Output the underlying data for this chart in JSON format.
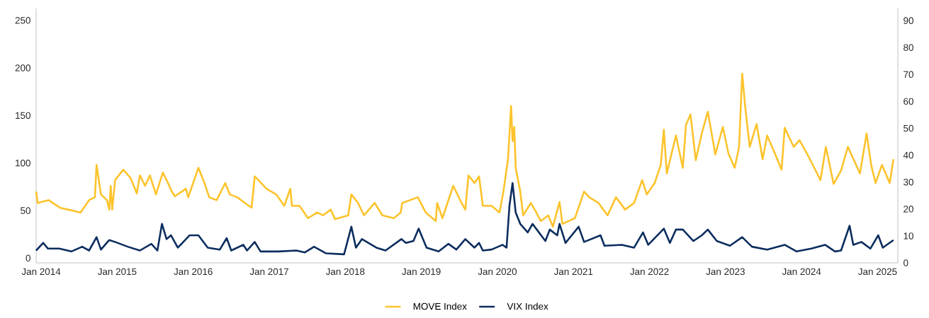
{
  "chart_data": {
    "type": "line",
    "xlim": [
      "2013-12-08",
      "2025-04-08"
    ],
    "xticks": [
      {
        "value": "2014-01-01",
        "label": "Jan 2014"
      },
      {
        "value": "2015-01-01",
        "label": "Jan 2015"
      },
      {
        "value": "2016-01-01",
        "label": "Jan 2016"
      },
      {
        "value": "2017-01-01",
        "label": "Jan 2017"
      },
      {
        "value": "2018-01-01",
        "label": "Jan 2018"
      },
      {
        "value": "2019-01-01",
        "label": "Jan 2019"
      },
      {
        "value": "2020-01-01",
        "label": "Jan 2020"
      },
      {
        "value": "2021-01-01",
        "label": "Jan 2021"
      },
      {
        "value": "2022-01-01",
        "label": "Jan 2022"
      },
      {
        "value": "2023-01-01",
        "label": "Jan 2023"
      },
      {
        "value": "2024-01-01",
        "label": "Jan 2024"
      },
      {
        "value": "2025-01-01",
        "label": "Jan 2025"
      }
    ],
    "ylim": [
      -5,
      262.5
    ],
    "yticks": [
      0,
      50,
      100,
      150,
      200,
      250
    ],
    "y2lim": [
      0,
      94.5
    ],
    "y2ticks": [
      0,
      10,
      20,
      30,
      40,
      50,
      60,
      70,
      80,
      90
    ],
    "grid": false,
    "legend": "bottom",
    "series": [
      {
        "name": "MOVE Index",
        "color": "#fcc32c",
        "x": [
          "2013-12-08",
          "2013-12-15",
          "2014-02-06",
          "2014-04-01",
          "2014-05-11",
          "2014-07-09",
          "2014-08-19",
          "2014-09-16",
          "2014-09-24",
          "2014-10-15",
          "2014-11-13",
          "2014-11-24",
          "2014-12-01",
          "2014-12-08",
          "2014-12-22",
          "2015-01-30",
          "2015-03-07",
          "2015-04-05",
          "2015-04-20",
          "2015-05-15",
          "2015-06-07",
          "2015-07-06",
          "2015-08-08",
          "2015-09-02",
          "2015-09-20",
          "2015-10-05",
          "2015-11-27",
          "2015-12-08",
          "2016-01-26",
          "2016-02-24",
          "2016-03-18",
          "2016-04-23",
          "2016-06-03",
          "2016-06-25",
          "2016-07-31",
          "2016-09-06",
          "2016-10-08",
          "2016-10-23",
          "2016-12-19",
          "2017-02-03",
          "2017-03-14",
          "2017-04-12",
          "2017-04-20",
          "2017-05-26",
          "2017-07-06",
          "2017-08-19",
          "2017-09-16",
          "2017-10-23",
          "2017-11-13",
          "2018-01-15",
          "2018-01-30",
          "2018-03-03",
          "2018-04-01",
          "2018-05-22",
          "2018-06-28",
          "2018-08-22",
          "2018-09-24",
          "2018-10-01",
          "2018-12-15",
          "2019-01-22",
          "2019-03-11",
          "2019-03-18",
          "2019-04-12",
          "2019-06-03",
          "2019-07-13",
          "2019-07-31",
          "2019-08-15",
          "2019-09-13",
          "2019-10-05",
          "2019-10-23",
          "2019-12-04",
          "2020-01-11",
          "2020-01-30",
          "2020-02-21",
          "2020-03-07",
          "2020-03-14",
          "2020-03-22",
          "2020-03-29",
          "2020-04-20",
          "2020-05-04",
          "2020-06-10",
          "2020-07-06",
          "2020-07-28",
          "2020-09-02",
          "2020-09-24",
          "2020-10-26",
          "2020-11-09",
          "2021-01-08",
          "2021-02-21",
          "2021-03-18",
          "2021-05-01",
          "2021-06-14",
          "2021-07-24",
          "2021-09-06",
          "2021-10-19",
          "2021-11-27",
          "2021-12-19",
          "2022-01-26",
          "2022-02-24",
          "2022-03-11",
          "2022-03-25",
          "2022-05-08",
          "2022-06-10",
          "2022-06-25",
          "2022-07-17",
          "2022-08-11",
          "2022-09-09",
          "2022-10-08",
          "2022-11-13",
          "2022-12-19",
          "2023-01-15",
          "2023-02-14",
          "2023-03-07",
          "2023-03-22",
          "2023-04-05",
          "2023-04-27",
          "2023-05-30",
          "2023-06-28",
          "2023-07-20",
          "2023-08-26",
          "2023-09-27",
          "2023-10-12",
          "2023-11-24",
          "2023-12-22",
          "2024-02-03",
          "2024-04-01",
          "2024-04-27",
          "2024-06-03",
          "2024-07-09",
          "2024-08-11",
          "2024-10-08",
          "2024-11-09",
          "2024-12-01",
          "2024-12-22",
          "2025-01-22",
          "2025-02-28",
          "2025-03-18"
        ],
        "values": [
          70,
          58,
          61,
          53,
          51,
          48,
          61,
          64,
          98,
          67,
          61,
          51,
          76,
          51,
          82,
          93,
          84,
          68,
          87,
          76,
          87,
          67,
          90,
          79,
          70,
          65,
          73,
          64,
          95,
          79,
          64,
          61,
          79,
          67,
          64,
          58,
          53,
          86,
          73,
          67,
          55,
          73,
          55,
          55,
          42,
          48,
          45,
          51,
          41,
          45,
          67,
          58,
          45,
          58,
          45,
          42,
          48,
          58,
          64,
          48,
          39,
          58,
          42,
          76,
          58,
          51,
          87,
          79,
          86,
          55,
          55,
          48,
          70,
          104,
          160,
          123,
          138,
          95,
          70,
          45,
          58,
          48,
          39,
          45,
          33,
          59,
          36,
          42,
          70,
          64,
          58,
          45,
          64,
          51,
          58,
          82,
          67,
          79,
          98,
          135,
          89,
          129,
          95,
          140,
          151,
          103,
          131,
          154,
          109,
          138,
          110,
          95,
          117,
          194,
          160,
          117,
          141,
          104,
          129,
          110,
          93,
          137,
          117,
          124,
          107,
          82,
          117,
          78,
          92,
          117,
          89,
          131,
          98,
          79,
          98,
          79,
          104
        ]
      },
      {
        "name": "VIX Index",
        "color": "#0b2d5e",
        "x": [
          "2013-12-08",
          "2014-01-11",
          "2014-02-03",
          "2014-03-29",
          "2014-05-26",
          "2014-07-17",
          "2014-08-19",
          "2014-09-24",
          "2014-10-15",
          "2014-11-24",
          "2014-12-22",
          "2015-02-21",
          "2015-04-20",
          "2015-06-14",
          "2015-07-13",
          "2015-08-04",
          "2015-08-26",
          "2015-09-16",
          "2015-10-19",
          "2015-12-15",
          "2016-01-26",
          "2016-03-11",
          "2016-05-08",
          "2016-06-10",
          "2016-07-02",
          "2016-08-29",
          "2016-09-16",
          "2016-10-23",
          "2016-11-20",
          "2017-02-14",
          "2017-05-11",
          "2017-06-21",
          "2017-08-04",
          "2017-10-01",
          "2017-12-26",
          "2018-01-30",
          "2018-02-21",
          "2018-03-22",
          "2018-05-30",
          "2018-07-13",
          "2018-09-27",
          "2018-10-19",
          "2018-11-24",
          "2018-12-19",
          "2019-01-26",
          "2019-03-25",
          "2019-05-11",
          "2019-06-18",
          "2019-07-31",
          "2019-09-13",
          "2019-10-05",
          "2019-10-23",
          "2019-12-04",
          "2020-01-26",
          "2020-02-14",
          "2020-02-28",
          "2020-03-14",
          "2020-03-29",
          "2020-04-20",
          "2020-05-26",
          "2020-06-18",
          "2020-08-19",
          "2020-09-09",
          "2020-10-15",
          "2020-10-26",
          "2020-11-24",
          "2021-01-26",
          "2021-02-21",
          "2021-05-11",
          "2021-05-30",
          "2021-08-22",
          "2021-10-19",
          "2021-12-01",
          "2021-12-26",
          "2022-03-11",
          "2022-04-09",
          "2022-05-08",
          "2022-06-10",
          "2022-07-31",
          "2022-09-09",
          "2022-10-08",
          "2022-11-20",
          "2023-01-22",
          "2023-03-22",
          "2023-05-08",
          "2023-07-20",
          "2023-10-12",
          "2023-12-08",
          "2024-02-17",
          "2024-04-23",
          "2024-06-10",
          "2024-07-09",
          "2024-08-19",
          "2024-09-06",
          "2024-10-15",
          "2024-11-27",
          "2025-01-04",
          "2025-01-26",
          "2025-03-18"
        ],
        "values": [
          8,
          16,
          10,
          10,
          7,
          12,
          8,
          22,
          9,
          19,
          17,
          12,
          8,
          15,
          8,
          36,
          20,
          24,
          11,
          24,
          24,
          11,
          9,
          21,
          8,
          14,
          8,
          17,
          7,
          7,
          8,
          6,
          12,
          5,
          4,
          33,
          11,
          20,
          11,
          8,
          20,
          16,
          18,
          31,
          11,
          7,
          15,
          9,
          20,
          11,
          16,
          8,
          9,
          14,
          11,
          55,
          79,
          48,
          36,
          27,
          36,
          18,
          30,
          24,
          36,
          16,
          33,
          17,
          24,
          13,
          14,
          11,
          27,
          14,
          31,
          16,
          30,
          30,
          18,
          24,
          30,
          18,
          13,
          22,
          12,
          9,
          14,
          7,
          10,
          14,
          7,
          8,
          34,
          14,
          17,
          10,
          24,
          11,
          19
        ]
      }
    ]
  }
}
